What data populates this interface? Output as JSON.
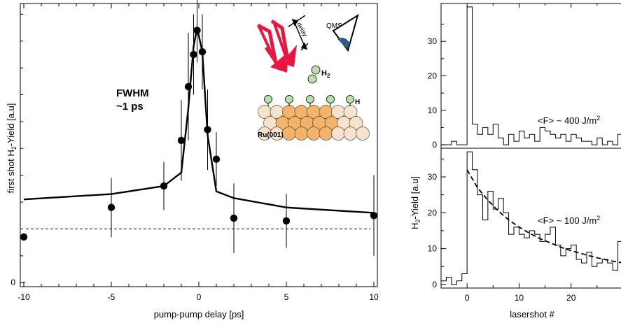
{
  "chart_data": [
    {
      "type": "scatter",
      "xlabel": "pump-pump delay [ps]",
      "ylabel_parts": [
        "first shot H",
        "2",
        "-Yield [a.u]"
      ],
      "x_ticks": [
        -10,
        -5,
        0,
        5,
        10
      ],
      "y_ticks": [
        0
      ],
      "xlim": [
        -10.2,
        10.2
      ],
      "ylim": [
        -0.15,
        10.4
      ],
      "grid": false,
      "annotation_lines": [
        "FWHM",
        "~1 ps"
      ],
      "series": [
        {
          "kind": "points_with_error_bars",
          "x": [
            -10,
            -5,
            -2,
            -1,
            -0.6,
            -0.3,
            -0.1,
            0.2,
            0.5,
            1,
            2,
            5,
            10
          ],
          "y": [
            1.7,
            2.8,
            3.6,
            5.3,
            7.3,
            8.5,
            9.4,
            8.6,
            5.7,
            4.6,
            2.4,
            2.3,
            2.5
          ],
          "err": [
            0,
            1.1,
            0.9,
            1.5,
            2.0,
            1.5,
            1.2,
            1.4,
            1.5,
            1.0,
            1.3,
            1.0,
            1.5
          ]
        },
        {
          "kind": "fit_line",
          "x": [
            -10,
            -5,
            -2,
            -1,
            -0.6,
            -0.3,
            -0.1,
            0.2,
            0.5,
            1,
            2,
            5,
            10
          ],
          "y": [
            3.1,
            3.3,
            3.6,
            4.1,
            6.5,
            8.8,
            9.5,
            8.6,
            5.5,
            3.4,
            3.15,
            2.8,
            2.6
          ]
        },
        {
          "kind": "baseline",
          "y": 2.0
        }
      ],
      "inset": {
        "labels": {
          "delay": "delay",
          "qms": "QMS",
          "h2_main": "H",
          "h2_sub": "2",
          "h": "H",
          "surface": "Ru(001)"
        },
        "colors": {
          "beam": "#e8173f",
          "hydrogen": "#b8e0a8",
          "surface_warm": "#f2b36a",
          "surface_pale": "#f6e3cf",
          "detector_cone": "#2c5a8c"
        }
      }
    },
    {
      "type": "line",
      "xlabel": "lasershot #",
      "ylabel_parts": [
        "H",
        "2",
        "-Yield [a.u]"
      ],
      "x_ticks": [
        0,
        10,
        20
      ],
      "xlim": [
        -5,
        30
      ],
      "panels": [
        {
          "label_parts": [
            "<F> ~ 400 J/m",
            "2"
          ],
          "y_ticks": [
            0,
            10,
            20,
            30
          ],
          "ylim": [
            -1,
            41
          ],
          "series": [
            {
              "kind": "step",
              "x": [
                -5,
                -3,
                -2,
                0,
                1,
                2,
                3,
                4,
                5,
                6,
                7,
                8,
                9,
                10,
                11,
                12,
                13,
                14,
                15,
                16,
                17,
                18,
                19,
                20,
                21,
                22,
                23,
                24,
                25,
                26,
                27,
                28,
                29,
                30
              ],
              "y": [
                0,
                1,
                0,
                40,
                6,
                3,
                5,
                3,
                6,
                2,
                0,
                3,
                1,
                4,
                2,
                3,
                1,
                5,
                4,
                3,
                2,
                3,
                1,
                3,
                2,
                1,
                1,
                0,
                2,
                0,
                1,
                0,
                3,
                0
              ]
            }
          ]
        },
        {
          "label_parts": [
            "<F> ~ 100 J/m",
            "2"
          ],
          "y_ticks": [
            0,
            10,
            20,
            30
          ],
          "ylim": [
            -1,
            38
          ],
          "series": [
            {
              "kind": "step",
              "x": [
                -5,
                -4,
                -3,
                -2,
                -1,
                0,
                1,
                2,
                3,
                4,
                5,
                6,
                7,
                8,
                9,
                10,
                11,
                12,
                13,
                14,
                15,
                16,
                17,
                18,
                19,
                20,
                21,
                22,
                23,
                24,
                25,
                26,
                27,
                28,
                29,
                30
              ],
              "y": [
                1,
                2,
                0,
                1,
                3,
                37,
                32,
                25,
                18,
                26,
                21,
                24,
                20,
                14,
                16,
                14,
                13,
                15,
                14,
                12,
                14,
                16,
                11,
                8,
                10,
                11,
                7,
                6,
                9,
                5,
                6,
                7,
                6,
                4,
                12,
                8
              ]
            },
            {
              "kind": "fit_dashed",
              "x": [
                0,
                2,
                4,
                6,
                8,
                10,
                12,
                14,
                16,
                18,
                20,
                22,
                24,
                26,
                28,
                30
              ],
              "y": [
                32,
                27,
                23.5,
                20.5,
                18,
                16,
                14.3,
                12.8,
                11.6,
                10.4,
                9.4,
                8.6,
                7.8,
                7.1,
                6.5,
                6
              ]
            }
          ]
        }
      ]
    }
  ]
}
